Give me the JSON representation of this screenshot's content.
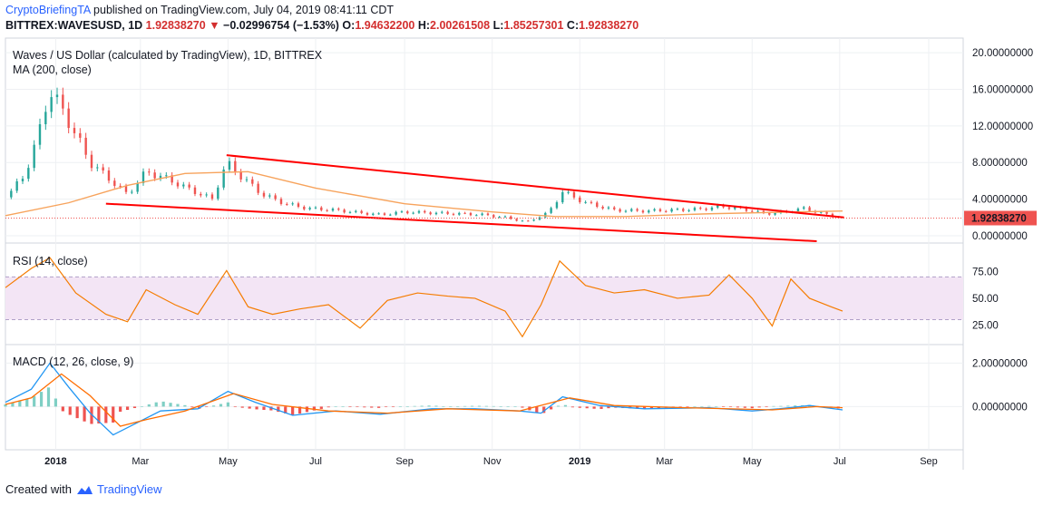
{
  "header": {
    "author": "CryptoBriefingTA",
    "published_text": "published on TradingView.com, July 04, 2019 08:41:11 CDT",
    "symbol": "BITTREX:WAVESUSD, 1D",
    "last": "1.92838270",
    "change_arrow": "▼",
    "change": "−0.02996754 (−1.53%)",
    "o_label": "O:",
    "o": "1.94632200",
    "h_label": "H:",
    "h": "2.00261508",
    "l_label": "L:",
    "l": "1.85257301",
    "c_label": "C:",
    "c": "1.92838270"
  },
  "footer": {
    "created_with": "Created with",
    "brand": "TradingView",
    "logo_icon": "tradingview-cloud-icon"
  },
  "colors": {
    "up": "#26a69a",
    "down": "#ef5350",
    "ma": "#f7a35c",
    "trend": "#ff0000",
    "rsi": "#f57c00",
    "rsi_band": "#f3e5f5",
    "macd": "#2196f3",
    "signal": "#ff6d00",
    "price_tag": "#ef5350"
  },
  "chart_data": [
    {
      "type": "candlestick",
      "title": "Waves / US Dollar (calculated by TradingView), 1D, BITTREX",
      "indicator_label": "MA (200, close)",
      "y_ticks": [
        "20.00000000",
        "16.00000000",
        "12.00000000",
        "8.00000000",
        "4.00000000",
        "0.00000000"
      ],
      "ylim": [
        -0.4,
        21
      ],
      "last_price_label": "1.92838270",
      "x_ticks": [
        "2018",
        "Mar",
        "May",
        "Jul",
        "Sep",
        "Nov",
        "2019",
        "Mar",
        "May",
        "Jul",
        "Sep"
      ],
      "close_series": {
        "dates": [
          "2017-11-27",
          "2017-12-10",
          "2017-12-20",
          "2017-12-28",
          "2018-01-10",
          "2018-01-25",
          "2018-02-05",
          "2018-02-20",
          "2018-03-05",
          "2018-03-20",
          "2018-04-05",
          "2018-04-20",
          "2018-04-30",
          "2018-05-10",
          "2018-05-25",
          "2018-06-10",
          "2018-06-25",
          "2018-07-15",
          "2018-08-01",
          "2018-08-15",
          "2018-09-01",
          "2018-09-20",
          "2018-10-10",
          "2018-10-25",
          "2018-11-10",
          "2018-11-25",
          "2018-12-10",
          "2018-12-20",
          "2019-01-05",
          "2019-01-25",
          "2019-02-15",
          "2019-03-05",
          "2019-03-25",
          "2019-04-10",
          "2019-04-25",
          "2019-05-10",
          "2019-05-25",
          "2019-06-05",
          "2019-06-20",
          "2019-07-03"
        ],
        "values": [
          4.2,
          6.5,
          11.0,
          16.0,
          12.5,
          8.0,
          6.5,
          4.5,
          7.0,
          6.2,
          5.0,
          4.0,
          8.0,
          6.5,
          4.5,
          3.5,
          3.0,
          2.8,
          2.5,
          2.3,
          2.6,
          2.5,
          2.4,
          2.3,
          2.0,
          1.5,
          2.5,
          4.8,
          3.6,
          2.8,
          2.7,
          2.8,
          2.9,
          3.2,
          2.9,
          2.4,
          2.6,
          3.0,
          2.4,
          1.93
        ]
      },
      "ma200": {
        "dates": [
          "2017-11-27",
          "2018-01-10",
          "2018-02-20",
          "2018-04-01",
          "2018-05-15",
          "2018-07-01",
          "2018-09-01",
          "2018-11-01",
          "2018-12-15",
          "2019-02-01",
          "2019-04-01",
          "2019-06-01",
          "2019-07-03"
        ],
        "values": [
          2.2,
          3.6,
          5.5,
          6.8,
          7.0,
          5.2,
          3.5,
          2.6,
          2.1,
          2.1,
          2.4,
          2.6,
          2.7
        ]
      },
      "trend_lines": [
        {
          "from": {
            "date": "2018-04-30",
            "value": 8.8
          },
          "to": {
            "date": "2019-07-04",
            "value": 2.0
          }
        },
        {
          "from": {
            "date": "2018-02-05",
            "value": 3.5
          },
          "to": {
            "date": "2019-06-15",
            "value": -0.6
          }
        }
      ]
    },
    {
      "type": "line",
      "title": "RSI (14, close)",
      "y_ticks": [
        "75.00",
        "50.00",
        "25.00"
      ],
      "ylim": [
        10,
        95
      ],
      "band": [
        30,
        70
      ],
      "dates": [
        "2017-11-27",
        "2017-12-15",
        "2017-12-28",
        "2018-01-15",
        "2018-02-05",
        "2018-02-20",
        "2018-03-05",
        "2018-03-25",
        "2018-04-10",
        "2018-04-30",
        "2018-05-15",
        "2018-06-01",
        "2018-06-20",
        "2018-07-10",
        "2018-08-01",
        "2018-08-20",
        "2018-09-10",
        "2018-10-01",
        "2018-10-20",
        "2018-11-10",
        "2018-11-22",
        "2018-12-05",
        "2018-12-18",
        "2019-01-05",
        "2019-01-25",
        "2019-02-15",
        "2019-03-10",
        "2019-04-01",
        "2019-04-15",
        "2019-05-01",
        "2019-05-15",
        "2019-05-28",
        "2019-06-10",
        "2019-06-25",
        "2019-07-03"
      ],
      "values": [
        60,
        78,
        88,
        55,
        35,
        28,
        58,
        44,
        35,
        76,
        42,
        35,
        40,
        44,
        22,
        48,
        55,
        52,
        50,
        38,
        14,
        44,
        85,
        62,
        55,
        58,
        50,
        53,
        72,
        50,
        24,
        68,
        50,
        42,
        38
      ]
    },
    {
      "type": "line",
      "title": "MACD (12, 26, close, 9)",
      "y_ticks": [
        "2.00000000",
        "0.00000000"
      ],
      "ylim": [
        -1.9,
        2.6
      ],
      "macd": {
        "dates": [
          "2017-11-27",
          "2017-12-15",
          "2017-12-28",
          "2018-01-10",
          "2018-01-25",
          "2018-02-10",
          "2018-02-25",
          "2018-03-15",
          "2018-04-10",
          "2018-05-01",
          "2018-05-20",
          "2018-06-15",
          "2018-07-15",
          "2018-08-15",
          "2018-09-20",
          "2018-10-20",
          "2018-11-20",
          "2018-12-05",
          "2018-12-20",
          "2019-01-15",
          "2019-02-15",
          "2019-04-01",
          "2019-05-01",
          "2019-05-20",
          "2019-06-10",
          "2019-07-03"
        ],
        "values": [
          0.2,
          0.8,
          2.0,
          0.9,
          -0.3,
          -1.3,
          -0.8,
          -0.2,
          -0.1,
          0.7,
          0.2,
          -0.4,
          -0.2,
          -0.35,
          -0.1,
          -0.1,
          -0.2,
          -0.3,
          0.45,
          0.05,
          -0.1,
          -0.05,
          -0.2,
          -0.1,
          0.05,
          -0.15
        ]
      },
      "signal": {
        "dates": [
          "2017-11-27",
          "2017-12-15",
          "2018-01-05",
          "2018-01-25",
          "2018-02-15",
          "2018-03-05",
          "2018-04-01",
          "2018-05-05",
          "2018-06-01",
          "2018-07-10",
          "2018-08-20",
          "2018-10-01",
          "2018-11-20",
          "2018-12-25",
          "2019-01-25",
          "2019-03-15",
          "2019-05-15",
          "2019-06-15",
          "2019-07-03"
        ],
        "values": [
          0.1,
          0.4,
          1.5,
          0.5,
          -0.9,
          -0.6,
          -0.2,
          0.6,
          0.1,
          -0.2,
          -0.3,
          -0.1,
          -0.2,
          0.4,
          0.05,
          -0.05,
          -0.15,
          0.0,
          -0.05
        ]
      }
    }
  ]
}
